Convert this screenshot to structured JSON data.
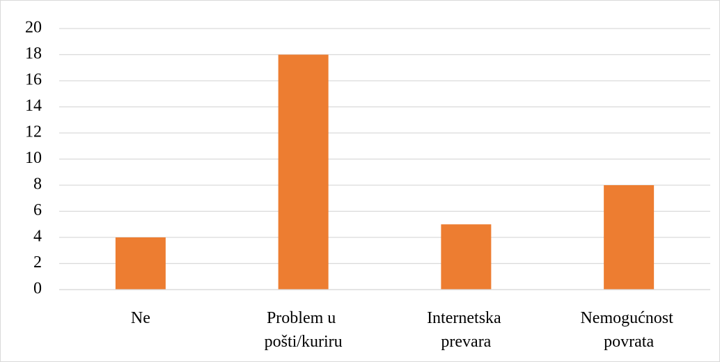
{
  "chart_data": {
    "type": "bar",
    "categories": [
      "Ne",
      "Problem u pošti/kuriru",
      "Internetska prevara",
      "Nemogućnost povrata"
    ],
    "values": [
      4,
      18,
      5,
      8
    ],
    "color": "#ed7d31",
    "ylim": [
      0,
      20
    ],
    "yticks": [
      0,
      2,
      4,
      6,
      8,
      10,
      12,
      14,
      16,
      18,
      20
    ],
    "grid": true
  }
}
